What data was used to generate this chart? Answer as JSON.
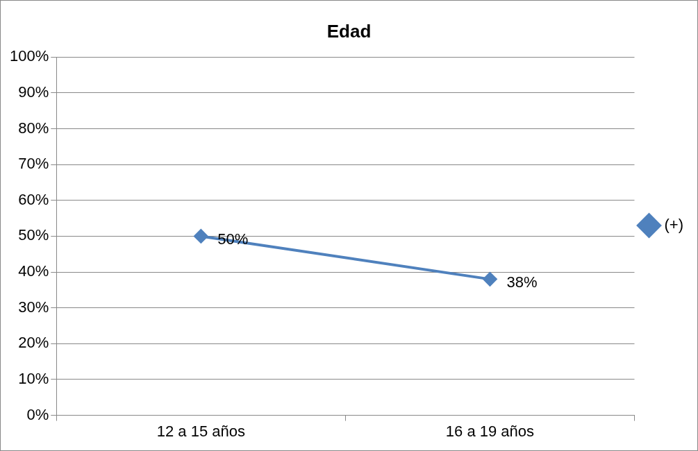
{
  "chart_data": {
    "type": "line",
    "title": "Edad",
    "categories": [
      "12 a 15 años",
      "16 a 19 años"
    ],
    "series": [
      {
        "name": "(+)",
        "color": "#4f81bd",
        "values": [
          50,
          38
        ],
        "value_labels": [
          "50%",
          "38%"
        ]
      }
    ],
    "ylim": [
      0,
      100
    ],
    "yticks": [
      {
        "value": 0,
        "label": "0%"
      },
      {
        "value": 10,
        "label": "10%"
      },
      {
        "value": 20,
        "label": "20%"
      },
      {
        "value": 30,
        "label": "30%"
      },
      {
        "value": 40,
        "label": "40%"
      },
      {
        "value": 50,
        "label": "50%"
      },
      {
        "value": 60,
        "label": "60%"
      },
      {
        "value": 70,
        "label": "70%"
      },
      {
        "value": 80,
        "label": "80%"
      },
      {
        "value": 90,
        "label": "90%"
      },
      {
        "value": 100,
        "label": "100%"
      }
    ],
    "grid": "y",
    "legend": "right",
    "marker": "diamond",
    "line_style": "solid"
  }
}
